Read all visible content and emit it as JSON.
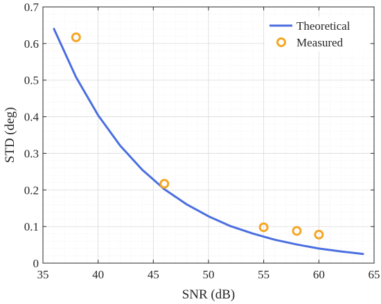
{
  "chart_data": {
    "type": "line",
    "xlabel": "SNR (dB)",
    "ylabel": "STD (deg)",
    "xlim": [
      35,
      65
    ],
    "ylim": [
      0,
      0.7
    ],
    "xticks": [
      35,
      40,
      45,
      50,
      55,
      60,
      65
    ],
    "yticks": [
      0,
      0.1,
      0.2,
      0.3,
      0.4,
      0.5,
      0.6,
      0.7
    ],
    "xtick_labels": [
      "35",
      "40",
      "45",
      "50",
      "55",
      "60",
      "65"
    ],
    "ytick_labels": [
      "0",
      "0.1",
      "0.2",
      "0.3",
      "0.4",
      "0.5",
      "0.6",
      "0.7"
    ],
    "grid": "major and minor",
    "legend_position": "top-right",
    "series": [
      {
        "name": "Theoretical",
        "kind": "line",
        "color": "#4a6ee0",
        "x": [
          36,
          38,
          40,
          42,
          44,
          46,
          48,
          50,
          52,
          54,
          56,
          58,
          60,
          62,
          64
        ],
        "y": [
          0.64,
          0.508,
          0.404,
          0.321,
          0.255,
          0.202,
          0.161,
          0.128,
          0.101,
          0.081,
          0.064,
          0.051,
          0.04,
          0.032,
          0.025
        ]
      },
      {
        "name": "Measured",
        "kind": "scatter",
        "color": "#f5a623",
        "x": [
          38,
          46,
          55,
          58,
          60
        ],
        "y": [
          0.617,
          0.217,
          0.098,
          0.088,
          0.078
        ]
      }
    ]
  }
}
